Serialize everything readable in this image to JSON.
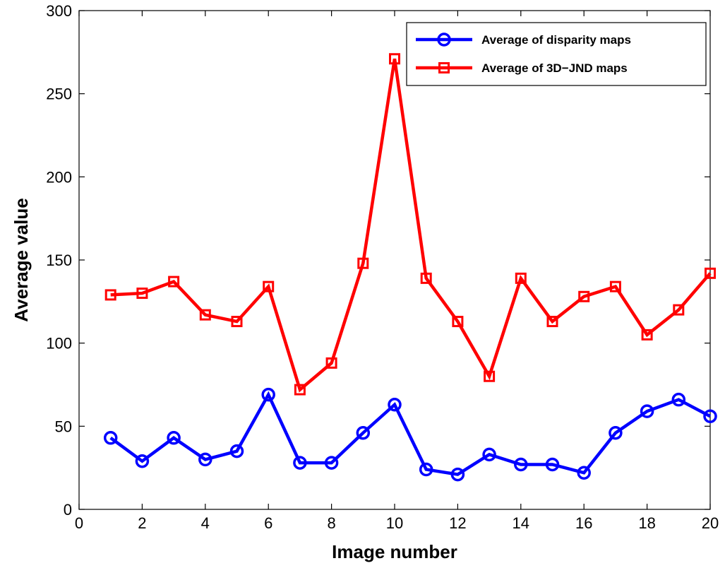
{
  "chart_data": {
    "type": "line",
    "title": "",
    "xlabel": "Image number",
    "ylabel": "Average value",
    "xlim": [
      0,
      20
    ],
    "ylim": [
      0,
      300
    ],
    "xticks": [
      0,
      2,
      4,
      6,
      8,
      10,
      12,
      14,
      16,
      18,
      20
    ],
    "yticks": [
      0,
      50,
      100,
      150,
      200,
      250,
      300
    ],
    "grid": false,
    "legend_position": "top-right",
    "x": [
      1,
      2,
      3,
      4,
      5,
      6,
      7,
      8,
      9,
      10,
      11,
      12,
      13,
      14,
      15,
      16,
      17,
      18,
      19,
      20
    ],
    "series": [
      {
        "name": "Average of disparity maps",
        "color": "#0000ff",
        "marker": "circle",
        "values": [
          43,
          29,
          43,
          30,
          35,
          69,
          28,
          28,
          46,
          63,
          24,
          21,
          33,
          27,
          27,
          22,
          46,
          59,
          66,
          56
        ]
      },
      {
        "name": "Average of 3D−JND maps",
        "color": "#ff0000",
        "marker": "square",
        "values": [
          129,
          130,
          137,
          117,
          113,
          134,
          72,
          88,
          148,
          271,
          139,
          113,
          80,
          139,
          113,
          128,
          134,
          105,
          120,
          142
        ]
      }
    ]
  }
}
